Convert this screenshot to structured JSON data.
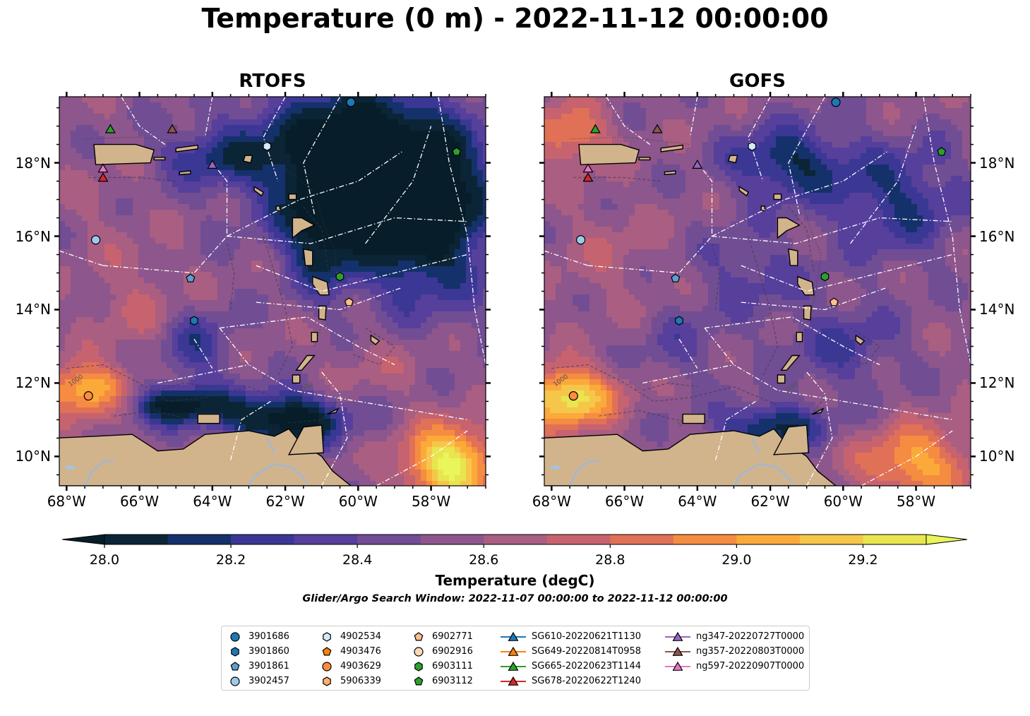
{
  "title": "Temperature (0 m) - 2022-11-12 00:00:00",
  "panels": [
    {
      "key": "rtofs",
      "title": "RTOFS",
      "ylabel_side": "left"
    },
    {
      "key": "gofs",
      "title": "GOFS",
      "ylabel_side": "right"
    }
  ],
  "chart_data": {
    "type": "heatmap",
    "lon_range": [
      -68.2,
      -56.5
    ],
    "lat_range": [
      9.2,
      19.8
    ],
    "x_ticks": [
      {
        "value": -68,
        "label": "68°W"
      },
      {
        "value": -66,
        "label": "66°W"
      },
      {
        "value": -64,
        "label": "64°W"
      },
      {
        "value": -62,
        "label": "62°W"
      },
      {
        "value": -60,
        "label": "60°W"
      },
      {
        "value": -58,
        "label": "58°W"
      }
    ],
    "y_ticks": [
      {
        "value": 10,
        "label": "10°N"
      },
      {
        "value": 12,
        "label": "12°N"
      },
      {
        "value": 14,
        "label": "14°N"
      },
      {
        "value": 16,
        "label": "16°N"
      },
      {
        "value": 18,
        "label": "18°N"
      }
    ],
    "colorbar": {
      "label": "Temperature (degC)",
      "range": [
        28.0,
        29.3
      ],
      "step": 0.1,
      "extend": "both",
      "tick_values": [
        28.0,
        28.2,
        28.4,
        28.6,
        28.8,
        29.0,
        29.2
      ],
      "tick_labels": [
        "28.0",
        "28.2",
        "28.4",
        "28.6",
        "28.8",
        "29.0",
        "29.2"
      ],
      "colors": [
        "#0b2537",
        "#15316b",
        "#3a3894",
        "#573f9c",
        "#714d94",
        "#8d568c",
        "#a95e82",
        "#c7636f",
        "#e07157",
        "#f58c41",
        "#fbaa3a",
        "#f6c64a",
        "#e8e54f"
      ],
      "under_color": "#071d29",
      "over_color": "#e9f55a"
    },
    "land_color": "#d2b48c",
    "contour_label": "1000"
  },
  "fields": {
    "rtofs": {
      "base": 28.55,
      "blobs": [
        [
          -60.2,
          18.2,
          2.6,
          1.8,
          -0.8
        ],
        [
          -58.2,
          16.5,
          1.8,
          2.2,
          -0.7
        ],
        [
          -61.0,
          16.0,
          1.0,
          1.5,
          -0.5
        ],
        [
          -64.0,
          18.2,
          1.5,
          0.8,
          -0.3
        ],
        [
          -62.0,
          11.0,
          1.6,
          0.7,
          -0.7
        ],
        [
          -65.0,
          11.4,
          1.4,
          0.5,
          -0.6
        ],
        [
          -67.5,
          11.8,
          1.2,
          0.7,
          0.6
        ],
        [
          -57.5,
          9.8,
          1.2,
          1.0,
          0.8
        ],
        [
          -64.5,
          13.0,
          1.0,
          1.0,
          -0.3
        ],
        [
          -66.0,
          14.0,
          1.3,
          1.3,
          0.15
        ],
        [
          -59.5,
          12.5,
          1.5,
          1.0,
          0.1
        ],
        [
          -67.0,
          16.5,
          1.5,
          1.5,
          0.05
        ]
      ]
    },
    "gofs": {
      "base": 28.55,
      "blobs": [
        [
          -61.5,
          18.0,
          1.6,
          1.0,
          -0.45
        ],
        [
          -58.5,
          17.0,
          1.8,
          1.5,
          -0.35
        ],
        [
          -62.5,
          15.0,
          1.5,
          1.2,
          -0.2
        ],
        [
          -67.5,
          18.8,
          1.0,
          0.8,
          0.4
        ],
        [
          -67.6,
          11.6,
          1.3,
          0.8,
          0.75
        ],
        [
          -62.0,
          10.8,
          1.4,
          0.6,
          -0.5
        ],
        [
          -58.0,
          9.8,
          1.5,
          1.0,
          0.5
        ],
        [
          -64.5,
          13.0,
          1.2,
          1.0,
          -0.15
        ],
        [
          -60.0,
          13.0,
          1.5,
          1.2,
          -0.25
        ],
        [
          -66.5,
          15.5,
          1.6,
          1.5,
          0.1
        ]
      ]
    }
  },
  "legend": {
    "columns": [
      [
        {
          "label": "3901686",
          "marker": "circle",
          "color": "#1f77b4"
        },
        {
          "label": "3901860",
          "marker": "hexagon",
          "color": "#1f77b4"
        },
        {
          "label": "3901861",
          "marker": "pentagon",
          "color": "#5e9fd2"
        },
        {
          "label": "3902457",
          "marker": "circle",
          "color": "#9ecae9"
        }
      ],
      [
        {
          "label": "4902534",
          "marker": "hexagon",
          "color": "#d3eafa"
        },
        {
          "label": "4903476",
          "marker": "pentagon",
          "color": "#ff7f0e"
        },
        {
          "label": "4903629",
          "marker": "circle",
          "color": "#fd8d3c"
        },
        {
          "label": "5906339",
          "marker": "hexagon",
          "color": "#fdae6b"
        }
      ],
      [
        {
          "label": "6902771",
          "marker": "pentagon",
          "color": "#fdbf8a"
        },
        {
          "label": "6902916",
          "marker": "circle",
          "color": "#fdd9b8"
        },
        {
          "label": "6903111",
          "marker": "hexagon",
          "color": "#2ca02c"
        },
        {
          "label": "6903112",
          "marker": "pentagon",
          "color": "#2ca02c"
        }
      ],
      [
        {
          "label": "SG610-20220621T1130",
          "marker": "line-triangle",
          "color": "#1f77b4"
        },
        {
          "label": "SG649-20220814T0958",
          "marker": "line-triangle",
          "color": "#ff7f0e"
        },
        {
          "label": "SG665-20220623T1144",
          "marker": "line-triangle",
          "color": "#2ca02c"
        },
        {
          "label": "SG678-20220622T1240",
          "marker": "line-triangle",
          "color": "#d62728"
        }
      ],
      [
        {
          "label": "ng347-20220727T0000",
          "marker": "line-triangle",
          "color": "#9467bd"
        },
        {
          "label": "ng357-20220803T0000",
          "marker": "line-triangle",
          "color": "#8c564b"
        },
        {
          "label": "ng597-20220907T0000",
          "marker": "line-triangle",
          "color": "#e377c2"
        }
      ]
    ]
  },
  "observations": [
    {
      "id": "3901686",
      "lon": -60.2,
      "lat": 19.65,
      "marker": "circle",
      "color": "#1f77b4"
    },
    {
      "id": "4902534",
      "lon": -62.5,
      "lat": 18.45,
      "marker": "hexagon",
      "color": "#d3eafa"
    },
    {
      "id": "6903112",
      "lon": -57.3,
      "lat": 18.3,
      "marker": "pentagon",
      "color": "#2ca02c"
    },
    {
      "id": "3902457",
      "lon": -67.2,
      "lat": 15.9,
      "marker": "circle",
      "color": "#9ecae9"
    },
    {
      "id": "3901861",
      "lon": -64.6,
      "lat": 14.85,
      "marker": "pentagon",
      "color": "#5e9fd2"
    },
    {
      "id": "6903111",
      "lon": -60.5,
      "lat": 14.9,
      "marker": "hexagon",
      "color": "#2ca02c"
    },
    {
      "id": "6902771",
      "lon": -60.25,
      "lat": 14.2,
      "marker": "pentagon",
      "color": "#fdbf8a"
    },
    {
      "id": "3901860",
      "lon": -64.5,
      "lat": 13.7,
      "marker": "hexagon",
      "color": "#1f77b4"
    },
    {
      "id": "4903629",
      "lon": -67.4,
      "lat": 11.65,
      "marker": "circle",
      "color": "#fd8d3c"
    },
    {
      "id": "SG665-20220623T1144",
      "lon": -66.8,
      "lat": 18.92,
      "marker": "triangle",
      "color": "#2ca02c"
    },
    {
      "id": "ng357-20220803T0000",
      "lon": -65.1,
      "lat": 18.92,
      "marker": "triangle",
      "color": "#8c564b"
    },
    {
      "id": "ng347-20220727T0000",
      "lon": -64.0,
      "lat": 17.95,
      "marker": "triangle",
      "color": "#9467bd"
    },
    {
      "id": "ng597-20220907T0000",
      "lon": -67.0,
      "lat": 17.85,
      "marker": "triangle",
      "color": "#e377c2"
    },
    {
      "id": "SG678-20220622T1240",
      "lon": -67.0,
      "lat": 17.6,
      "marker": "triangle",
      "color": "#d62728"
    }
  ],
  "search_window": "Glider/Argo Search Window: 2022-11-07 00:00:00 to 2022-11-12 00:00:00"
}
